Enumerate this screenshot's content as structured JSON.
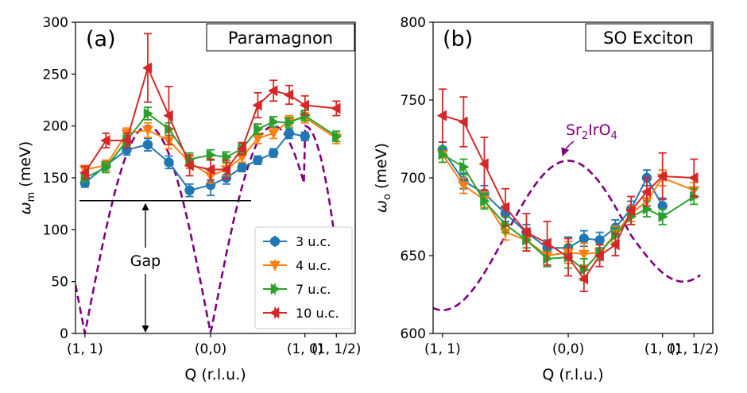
{
  "chart_data": [
    {
      "type": "line",
      "panel_label": "(a)",
      "title": "Paramagnon",
      "xlabel": "Q (r.l.u.)",
      "ylabel": "ω_m (meV)",
      "ylabel_main": "ω",
      "ylabel_sub": "m",
      "ylabel_rest": " (meV)",
      "ylim": [
        0,
        300
      ],
      "xlim": [
        -0.3,
        8.6
      ],
      "yticks": [
        0,
        50,
        100,
        150,
        200,
        250,
        300
      ],
      "xticks": [
        {
          "x": 0,
          "label": "(1, 1)"
        },
        {
          "x": 4,
          "label": "(0,0)"
        },
        {
          "x": 7,
          "label": "(1, 0)"
        },
        {
          "x": 8,
          "label": "(1, 1/2)"
        }
      ],
      "gap_line_y": 128,
      "gap_label": "Gap",
      "series": [
        {
          "name": "3 u.c.",
          "color": "#1f77b4",
          "marker": "circle",
          "x": [
            0,
            0.67,
            1.33,
            2,
            2.67,
            3.33,
            4,
            4.5,
            5,
            5.5,
            6,
            6.5,
            7
          ],
          "y": [
            145,
            162,
            177,
            182,
            165,
            138,
            143,
            150,
            160,
            167,
            174,
            193,
            190
          ],
          "err": [
            4,
            5,
            5,
            6,
            6,
            6,
            10,
            6,
            4,
            4,
            4,
            5,
            4
          ]
        },
        {
          "name": "4 u.c.",
          "color": "#ff7f0e",
          "marker": "triangle-down",
          "x": [
            0,
            0.67,
            1.33,
            2,
            2.67,
            3.33,
            4,
            4.5,
            5,
            5.5,
            6,
            6.5,
            7,
            8
          ],
          "y": [
            158,
            162,
            193,
            196,
            186,
            165,
            152,
            158,
            170,
            188,
            193,
            205,
            208,
            188
          ],
          "err": [
            4,
            5,
            5,
            7,
            8,
            6,
            7,
            6,
            5,
            5,
            5,
            5,
            5,
            5
          ]
        },
        {
          "name": "7 u.c.",
          "color": "#2ca02c",
          "marker": "triangle-right",
          "x": [
            0,
            0.67,
            1.33,
            2,
            2.67,
            3.33,
            4,
            4.5,
            5,
            5.5,
            6,
            6.5,
            7,
            8
          ],
          "y": [
            150,
            160,
            186,
            212,
            197,
            168,
            172,
            170,
            178,
            197,
            204,
            203,
            210,
            190
          ],
          "err": [
            4,
            5,
            5,
            6,
            6,
            6,
            5,
            5,
            5,
            5,
            5,
            5,
            5,
            5
          ]
        },
        {
          "name": "10 u.c.",
          "color": "#d62728",
          "marker": "triangle-left",
          "x": [
            0,
            0.67,
            1.33,
            2,
            2.67,
            3.33,
            4,
            4.5,
            5,
            5.5,
            6,
            6.5,
            7,
            8
          ],
          "y": [
            155,
            186,
            186,
            256,
            210,
            162,
            158,
            158,
            178,
            220,
            234,
            230,
            220,
            217
          ],
          "err": [
            6,
            7,
            7,
            33,
            28,
            10,
            10,
            9,
            6,
            12,
            10,
            9,
            9,
            7
          ]
        }
      ],
      "dashed_curve": {
        "color": "#800080",
        "shape": "paramagnon"
      }
    },
    {
      "type": "line",
      "panel_label": "(b)",
      "title": "SO Exciton",
      "xlabel": "Q (r.l.u.)",
      "ylabel": "ω_o (meV)",
      "ylabel_main": "ω",
      "ylabel_sub": "o",
      "ylabel_rest": " (meV)",
      "ylim": [
        600,
        800
      ],
      "xlim": [
        -0.3,
        8.6
      ],
      "yticks": [
        600,
        650,
        700,
        750,
        800
      ],
      "xticks": [
        {
          "x": 0,
          "label": "(1, 1)"
        },
        {
          "x": 4,
          "label": "(0,0)"
        },
        {
          "x": 7,
          "label": "(1, 0)"
        },
        {
          "x": 8,
          "label": "(1, 1/2)"
        }
      ],
      "annotation": {
        "text_main": "Sr",
        "sub1": "2",
        "text_mid": "IrO",
        "sub2": "4"
      },
      "series": [
        {
          "name": "3 u.c.",
          "color": "#1f77b4",
          "marker": "circle",
          "x": [
            0,
            0.67,
            1.33,
            2,
            2.67,
            3.33,
            4,
            4.5,
            5,
            5.5,
            6,
            6.5,
            7
          ],
          "y": [
            718,
            698,
            690,
            677,
            665,
            655,
            655,
            661,
            660,
            668,
            680,
            700,
            682
          ],
          "err": [
            5,
            5,
            5,
            5,
            5,
            5,
            7,
            5,
            5,
            5,
            5,
            5,
            5
          ]
        },
        {
          "name": "4 u.c.",
          "color": "#ff7f0e",
          "marker": "triangle-down",
          "x": [
            0,
            0.67,
            1.33,
            2,
            2.67,
            3.33,
            4,
            4.5,
            5,
            5.5,
            6,
            6.5,
            7,
            8
          ],
          "y": [
            715,
            695,
            686,
            665,
            660,
            650,
            652,
            651,
            652,
            664,
            677,
            685,
            700,
            692
          ],
          "err": [
            5,
            5,
            5,
            5,
            7,
            7,
            7,
            7,
            5,
            5,
            5,
            5,
            5,
            5
          ]
        },
        {
          "name": "7 u.c.",
          "color": "#2ca02c",
          "marker": "triangle-right",
          "x": [
            0,
            0.67,
            1.33,
            2,
            2.67,
            3.33,
            4,
            4.5,
            5,
            5.5,
            6,
            6.5,
            7,
            8
          ],
          "y": [
            715,
            707,
            685,
            670,
            660,
            648,
            649,
            641,
            652,
            663,
            675,
            680,
            675,
            688
          ],
          "err": [
            5,
            5,
            5,
            5,
            5,
            5,
            7,
            7,
            5,
            5,
            5,
            5,
            5,
            5
          ]
        },
        {
          "name": "10 u.c.",
          "color": "#d62728",
          "marker": "triangle-left",
          "x": [
            0,
            0.67,
            1.33,
            2,
            2.67,
            3.33,
            4,
            4.5,
            5,
            5.5,
            6,
            6.5,
            7,
            8
          ],
          "y": [
            740,
            736,
            709,
            681,
            665,
            658,
            649,
            635,
            650,
            657,
            679,
            691,
            701,
            700
          ],
          "err": [
            17,
            16,
            17,
            12,
            12,
            14,
            12,
            8,
            7,
            7,
            9,
            9,
            15,
            12
          ]
        }
      ],
      "dashed_curve": {
        "color": "#800080",
        "shape": "exciton"
      }
    }
  ]
}
